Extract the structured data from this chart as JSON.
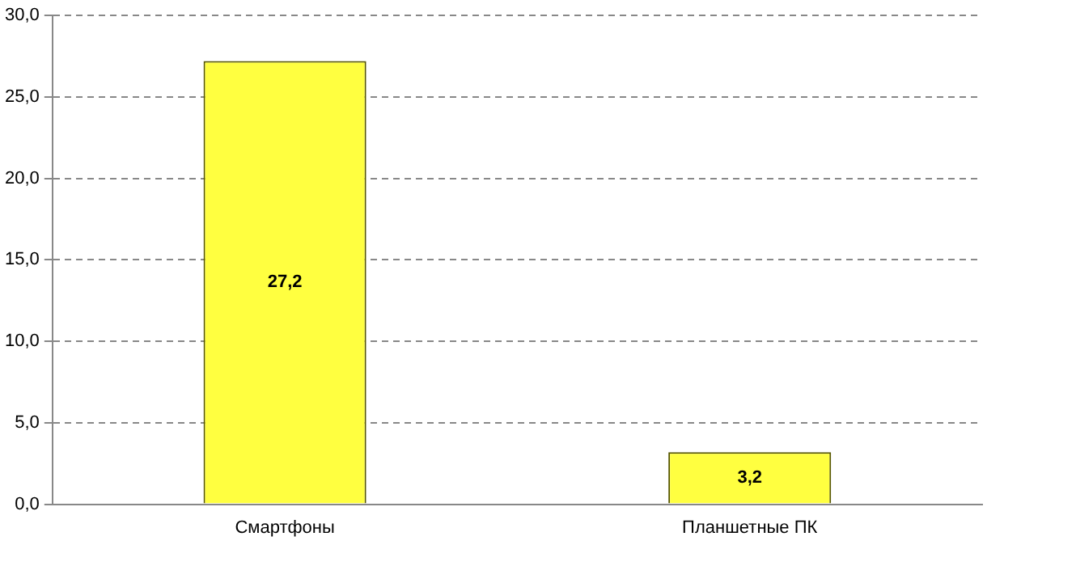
{
  "chart_data": {
    "type": "bar",
    "categories": [
      "Смартфоны",
      "Планшетные ПК"
    ],
    "values": [
      27.2,
      3.2
    ],
    "value_labels": [
      "27,2",
      "3,2"
    ],
    "color": "#ffff40",
    "ylim": [
      0,
      30
    ],
    "yticks": [
      {
        "value": 0,
        "label": "0,0"
      },
      {
        "value": 5,
        "label": "5,0"
      },
      {
        "value": 10,
        "label": "10,0"
      },
      {
        "value": 15,
        "label": "15,0"
      },
      {
        "value": 20,
        "label": "20,0"
      },
      {
        "value": 25,
        "label": "25,0"
      },
      {
        "value": 30,
        "label": "30,0"
      }
    ],
    "grid": "y",
    "legend": false
  }
}
